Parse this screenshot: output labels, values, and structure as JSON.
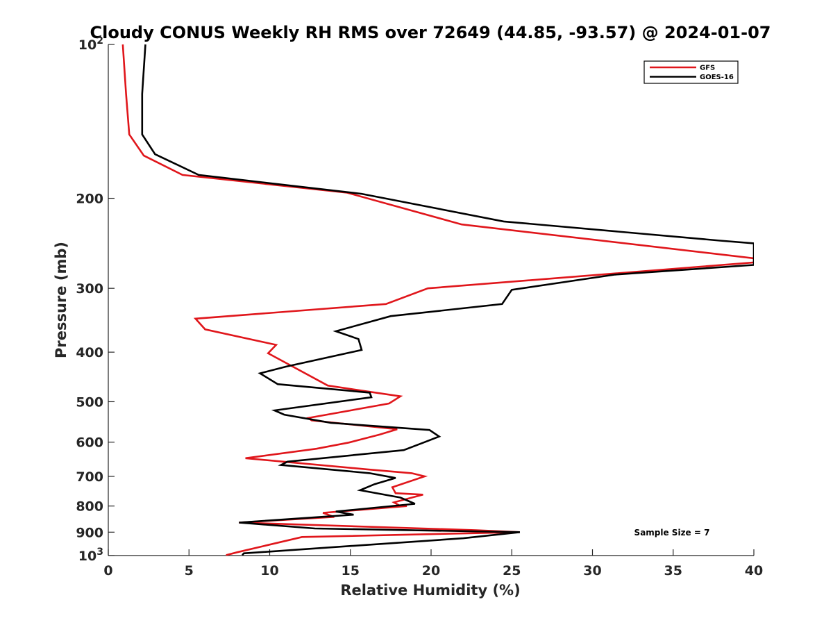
{
  "chart_data": {
    "type": "line",
    "title": "Cloudy CONUS Weekly RH RMS over 72649 (44.85, -93.57) @ 2024-01-07",
    "xlabel": "Relative Humidity (%)",
    "ylabel": "Pressure (mb)",
    "xlim": [
      0,
      40
    ],
    "ylim": [
      100,
      1000
    ],
    "y_scale": "log",
    "y_reversed": true,
    "x_ticks": [
      "0",
      "5",
      "10",
      "15",
      "20",
      "25",
      "30",
      "35",
      "40"
    ],
    "y_ticks": [
      {
        "value": 100,
        "base": "10",
        "exp": "2"
      },
      {
        "value": 200,
        "label": "200"
      },
      {
        "value": 300,
        "label": "300"
      },
      {
        "value": 400,
        "label": "400"
      },
      {
        "value": 500,
        "label": "500"
      },
      {
        "value": 600,
        "label": "600"
      },
      {
        "value": 700,
        "label": "700"
      },
      {
        "value": 800,
        "label": "800"
      },
      {
        "value": 900,
        "label": "900"
      },
      {
        "value": 1000,
        "base": "10",
        "exp": "3"
      }
    ],
    "legend_position": "top-right",
    "annotation": "Sample Size = 7",
    "series": [
      {
        "name": "GFS",
        "color": "#e0161b",
        "points": [
          [
            0.9,
            100
          ],
          [
            1.1,
            125
          ],
          [
            1.3,
            150
          ],
          [
            2.2,
            165
          ],
          [
            4.6,
            180
          ],
          [
            14.8,
            195
          ],
          [
            21.9,
            225
          ],
          [
            40.0,
            262
          ],
          [
            40.0,
            267
          ],
          [
            19.8,
            300
          ],
          [
            17.2,
            322
          ],
          [
            5.4,
            344
          ],
          [
            6.0,
            361
          ],
          [
            10.4,
            387
          ],
          [
            9.9,
            402
          ],
          [
            11.2,
            423
          ],
          [
            13.6,
            465
          ],
          [
            18.1,
            488
          ],
          [
            17.4,
            504
          ],
          [
            12.4,
            538
          ],
          [
            12.6,
            544
          ],
          [
            17.9,
            566
          ],
          [
            16.8,
            580
          ],
          [
            14.9,
            601
          ],
          [
            12.9,
            618
          ],
          [
            8.5,
            645
          ],
          [
            16.0,
            678
          ],
          [
            18.8,
            690
          ],
          [
            19.6,
            700
          ],
          [
            17.6,
            735
          ],
          [
            17.8,
            755
          ],
          [
            19.5,
            760
          ],
          [
            17.7,
            787
          ],
          [
            18.1,
            800
          ],
          [
            18.5,
            800
          ],
          [
            13.3,
            825
          ],
          [
            14.0,
            840
          ],
          [
            8.1,
            862
          ],
          [
            22.8,
            892
          ],
          [
            25.5,
            900
          ],
          [
            12.0,
            920
          ],
          [
            8.0,
            985
          ],
          [
            7.3,
            998
          ]
        ]
      },
      {
        "name": "GOES-16",
        "color": "#000000",
        "points": [
          [
            2.3,
            100
          ],
          [
            2.1,
            125
          ],
          [
            2.1,
            150
          ],
          [
            2.9,
            164
          ],
          [
            5.6,
            180
          ],
          [
            15.7,
            196
          ],
          [
            24.5,
            222
          ],
          [
            37.9,
            242
          ],
          [
            40.0,
            245
          ],
          [
            40.0,
            270
          ],
          [
            31.4,
            282
          ],
          [
            25.0,
            302
          ],
          [
            24.4,
            322
          ],
          [
            17.5,
            340
          ],
          [
            14.1,
            364
          ],
          [
            15.5,
            377
          ],
          [
            15.7,
            396
          ],
          [
            11.0,
            427
          ],
          [
            9.4,
            440
          ],
          [
            10.5,
            462
          ],
          [
            16.2,
            480
          ],
          [
            16.3,
            490
          ],
          [
            10.3,
            520
          ],
          [
            10.9,
            530
          ],
          [
            13.8,
            550
          ],
          [
            19.9,
            568
          ],
          [
            20.5,
            585
          ],
          [
            19.6,
            600
          ],
          [
            18.3,
            622
          ],
          [
            11.1,
            655
          ],
          [
            10.7,
            665
          ],
          [
            16.2,
            690
          ],
          [
            17.8,
            705
          ],
          [
            16.5,
            725
          ],
          [
            15.6,
            745
          ],
          [
            18.1,
            770
          ],
          [
            19.0,
            792
          ],
          [
            14.1,
            820
          ],
          [
            15.2,
            832
          ],
          [
            8.1,
            862
          ],
          [
            12.8,
            885
          ],
          [
            25.5,
            900
          ],
          [
            22.0,
            925
          ],
          [
            8.4,
            990
          ],
          [
            8.3,
            998
          ]
        ]
      }
    ]
  }
}
